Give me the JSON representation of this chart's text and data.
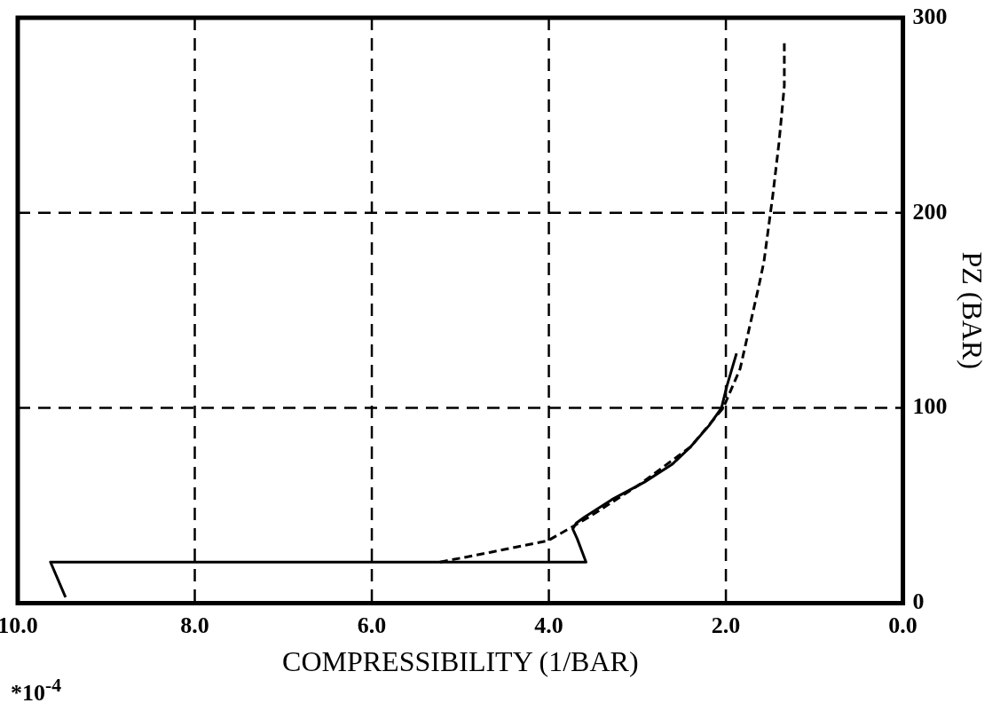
{
  "chart_data": {
    "type": "line",
    "xlabel": "COMPRESSIBILITY (1/BAR)",
    "ylabel": "PZ (BAR)",
    "annotations": [
      "*10$^{-4}$"
    ],
    "xlim": [
      10,
      0
    ],
    "xticks": [
      {
        "value": 0,
        "label": "0.0"
      },
      {
        "value": 2,
        "label": "2.0"
      },
      {
        "value": 4,
        "label": "4.0"
      },
      {
        "value": 6,
        "label": "6.0"
      },
      {
        "value": 8,
        "label": "8.0"
      },
      {
        "value": 10,
        "label": "10.0"
      }
    ],
    "ylim": [
      0,
      300
    ],
    "yticks": [
      0,
      100,
      200,
      300
    ],
    "grid": true,
    "legend": false,
    "marker": "none",
    "series": [
      {
        "type": "line",
        "color": "#000000",
        "line_style": "solid",
        "x": [
          9.46,
          9.63,
          3.58,
          3.68,
          3.73,
          3.69,
          3.6,
          3.29,
          2.92,
          2.61,
          2.4,
          2.19,
          2.05,
          1.99,
          1.88
        ],
        "values": [
          3,
          21,
          21,
          33,
          38,
          41,
          44,
          53,
          62,
          71,
          80,
          91,
          100,
          111,
          128
        ]
      },
      {
        "type": "line",
        "color": "#000000",
        "line_style": "dashed",
        "x": [
          5.23,
          4.66,
          4.01,
          3.7,
          3.55,
          3.0,
          2.4,
          2.03,
          1.84,
          1.74,
          1.63,
          1.57,
          1.47,
          1.4,
          1.34,
          1.34
        ],
        "values": [
          21,
          26,
          32,
          40,
          44,
          60,
          80,
          100,
          120,
          140,
          162,
          175,
          209,
          236,
          265,
          289
        ]
      }
    ]
  }
}
